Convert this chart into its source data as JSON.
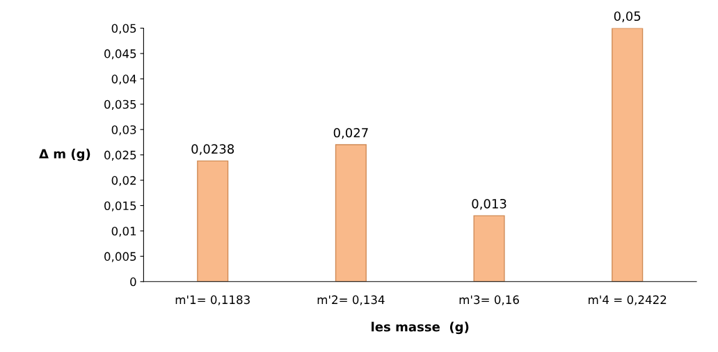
{
  "chart_data": {
    "type": "bar",
    "xlabel": "les masse  (g)",
    "ylabel": "Δ m (g)",
    "categories": [
      "m'1= 0,1183",
      "m'2= 0,134",
      "m'3= 0,16",
      "m'4 = 0,2422"
    ],
    "values": [
      0.0238,
      0.027,
      0.013,
      0.05
    ],
    "value_labels": [
      "0,0238",
      "0,027",
      "0,013",
      "0,05"
    ],
    "color": "#f9b98a",
    "ylim": [
      0,
      0.05
    ],
    "yticks": [
      0,
      {
        "value": 0.005,
        "label": "0,005"
      },
      {
        "value": 0.01,
        "label": "0,01"
      },
      {
        "value": 0.015,
        "label": "0,015"
      },
      {
        "value": 0.02,
        "label": "0,02"
      },
      {
        "value": 0.025,
        "label": "0,025"
      },
      {
        "value": 0.03,
        "label": "0,03"
      },
      {
        "value": 0.035,
        "label": "0,035"
      },
      {
        "value": 0.04,
        "label": "0,04"
      },
      {
        "value": 0.045,
        "label": "0,045"
      },
      {
        "value": 0.05,
        "label": "0,05"
      }
    ],
    "grid": false,
    "legend": false
  }
}
